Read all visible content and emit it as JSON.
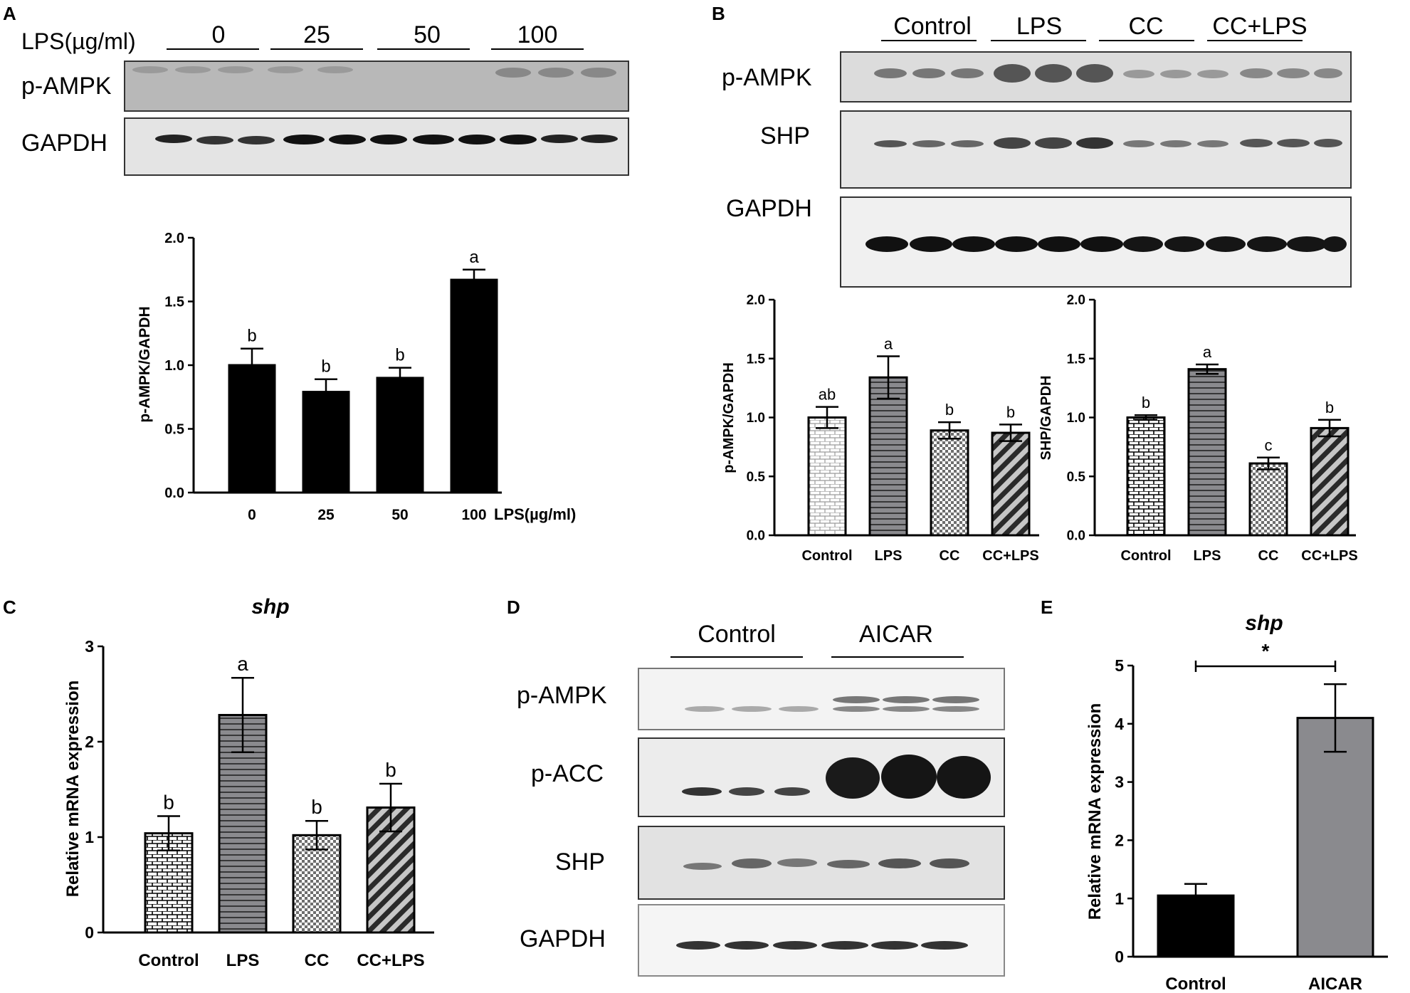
{
  "panels": {
    "A": {
      "letter": "A",
      "lane_header": "LPS(µg/ml)",
      "groups": [
        "0",
        "25",
        "50",
        "100"
      ],
      "blots": [
        "p-AMPK",
        "GAPDH"
      ]
    },
    "B": {
      "letter": "B",
      "groups": [
        "Control",
        "LPS",
        "CC",
        "CC+LPS"
      ],
      "blots": [
        "p-AMPK",
        "SHP",
        "GAPDH"
      ]
    },
    "C": {
      "letter": "C"
    },
    "D": {
      "letter": "D",
      "groups": [
        "Control",
        "AICAR"
      ],
      "blots": [
        "p-AMPK",
        "p-ACC",
        "SHP",
        "GAPDH"
      ]
    },
    "E": {
      "letter": "E"
    }
  },
  "colors": {
    "black": "#000000",
    "gray": "#8a8a8e",
    "light_fill": "#ffffff"
  },
  "chart_data": [
    {
      "id": "A",
      "type": "bar",
      "categories": [
        "0",
        "25",
        "50",
        "100"
      ],
      "values": [
        1.0,
        0.79,
        0.9,
        1.67
      ],
      "errors": [
        0.13,
        0.1,
        0.08,
        0.08
      ],
      "sig_letters": [
        "b",
        "b",
        "b",
        "a"
      ],
      "title": "",
      "xlabel": "LPS(µg/ml)",
      "ylabel": "p-AMPK/GAPDH",
      "ylim": [
        0,
        2.0
      ],
      "yticks": [
        "0.0",
        "0.5",
        "1.0",
        "1.5",
        "2.0"
      ],
      "patterns": [
        "solid-black",
        "solid-black",
        "solid-black",
        "solid-black"
      ]
    },
    {
      "id": "B1",
      "type": "bar",
      "categories": [
        "Control",
        "LPS",
        "CC",
        "CC+LPS"
      ],
      "values": [
        1.0,
        1.34,
        0.89,
        0.87
      ],
      "errors": [
        0.09,
        0.18,
        0.07,
        0.07
      ],
      "sig_letters": [
        "ab",
        "a",
        "b",
        "b"
      ],
      "title": "",
      "xlabel": "",
      "ylabel": "p-AMPK/GAPDH",
      "ylim": [
        0,
        2.0
      ],
      "yticks": [
        "0.0",
        "0.5",
        "1.0",
        "1.5",
        "2.0"
      ],
      "patterns": [
        "brick-light",
        "hstripe",
        "checker",
        "diag"
      ]
    },
    {
      "id": "B2",
      "type": "bar",
      "categories": [
        "Control",
        "LPS",
        "CC",
        "CC+LPS"
      ],
      "values": [
        1.0,
        1.41,
        0.61,
        0.91
      ],
      "errors": [
        0.02,
        0.04,
        0.05,
        0.07
      ],
      "sig_letters": [
        "b",
        "a",
        "c",
        "b"
      ],
      "title": "",
      "xlabel": "",
      "ylabel": "SHP/GAPDH",
      "ylim": [
        0,
        2.0
      ],
      "yticks": [
        "0.0",
        "0.5",
        "1.0",
        "1.5",
        "2.0"
      ],
      "patterns": [
        "brick",
        "hstripe",
        "checker",
        "diag"
      ]
    },
    {
      "id": "C",
      "type": "bar",
      "categories": [
        "Control",
        "LPS",
        "CC",
        "CC+LPS"
      ],
      "values": [
        1.04,
        2.28,
        1.02,
        1.31
      ],
      "errors": [
        0.18,
        0.39,
        0.15,
        0.25
      ],
      "sig_letters": [
        "b",
        "a",
        "b",
        "b"
      ],
      "title": "shp",
      "xlabel": "",
      "ylabel": "Relative mRNA expression",
      "ylim": [
        0,
        3
      ],
      "yticks": [
        "0",
        "1",
        "2",
        "3"
      ],
      "patterns": [
        "brick",
        "hstripe",
        "checker",
        "diag"
      ]
    },
    {
      "id": "E",
      "type": "bar",
      "categories": [
        "Control",
        "AICAR"
      ],
      "values": [
        1.05,
        4.1
      ],
      "errors": [
        0.2,
        0.58
      ],
      "sig_letters": [
        "",
        ""
      ],
      "significance": "*",
      "title": "shp",
      "xlabel": "",
      "ylabel": "Relative mRNA expression",
      "ylim": [
        0,
        5
      ],
      "yticks": [
        "0",
        "1",
        "2",
        "3",
        "4",
        "5"
      ],
      "patterns": [
        "solid-black",
        "solid-gray"
      ]
    }
  ]
}
